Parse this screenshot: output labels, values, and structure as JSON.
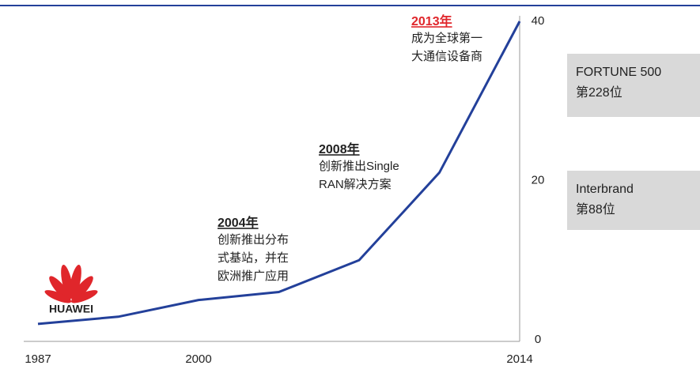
{
  "chart_data": {
    "type": "line",
    "categories": [
      "1987",
      null,
      "2000",
      null,
      null,
      null,
      "2014"
    ],
    "series": [
      {
        "color": "#23409a",
        "values": [
          2,
          2.9,
          5,
          6,
          10,
          21,
          40
        ]
      }
    ],
    "ylim": [
      0,
      40
    ],
    "yticks": [
      0,
      20,
      40
    ],
    "annotations": [
      {
        "title": "2013年",
        "color": "#e0262b",
        "lines": [
          "成为全球第一",
          "大通信设备商"
        ]
      },
      {
        "title": "2008年",
        "color": "#222222",
        "lines": [
          "创新推出Single",
          "RAN解决方案"
        ]
      },
      {
        "title": "2004年",
        "color": "#222222",
        "lines": [
          "创新推出分布",
          "式基站，并在",
          "欧洲推广应用"
        ]
      }
    ],
    "boxes": [
      {
        "title": "FORTUNE 500",
        "text": "第228位"
      },
      {
        "title": "Interbrand",
        "text": "第88位"
      }
    ],
    "logo": "HUAWEI"
  }
}
